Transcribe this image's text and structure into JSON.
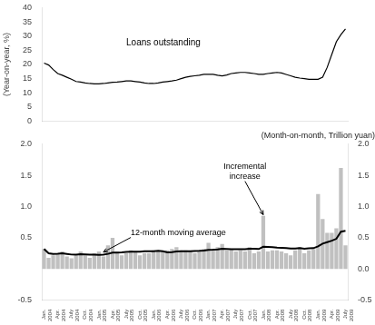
{
  "chart_data": [
    {
      "type": "line",
      "ylabel": "(Year-on-year, %)",
      "categories": [
        "Jan.\n2004",
        null,
        null,
        "Apr.\n2004",
        null,
        null,
        "July\n2004",
        null,
        null,
        "Oct.\n2004",
        null,
        null,
        "Jan.\n2005",
        null,
        null,
        "Apr.\n2005",
        null,
        null,
        "July\n2005",
        null,
        null,
        "Oct.\n2005",
        null,
        null,
        "Jan.\n2006",
        null,
        null,
        "Apr.\n2006",
        null,
        null,
        "July\n2006",
        null,
        null,
        "Oct.\n2006",
        null,
        null,
        "Jan.\n2007",
        null,
        null,
        "Apr.\n2007",
        null,
        null,
        "July\n2007",
        null,
        null,
        "Oct.\n2007",
        null,
        null,
        "Jan.\n2008",
        null,
        null,
        "Apr.\n2008",
        null,
        null,
        "July\n2008",
        null,
        null,
        "Oct.\n2008",
        null,
        null,
        "Jan.\n2009",
        null,
        null,
        "Apr.\n2009",
        null,
        null,
        "July\n2009"
      ],
      "values": [
        20.5,
        19.8,
        18.2,
        16.8,
        16.2,
        15.5,
        14.8,
        14.0,
        13.8,
        13.5,
        13.3,
        13.2,
        13.2,
        13.3,
        13.5,
        13.7,
        13.8,
        14.0,
        14.2,
        14.2,
        14.0,
        13.8,
        13.5,
        13.3,
        13.3,
        13.5,
        13.8,
        14.0,
        14.2,
        14.5,
        15.0,
        15.5,
        15.8,
        16.0,
        16.2,
        16.5,
        16.5,
        16.5,
        16.2,
        16.0,
        16.3,
        16.8,
        17.0,
        17.2,
        17.2,
        17.0,
        16.8,
        16.5,
        16.5,
        16.8,
        17.0,
        17.2,
        17.0,
        16.5,
        16.0,
        15.5,
        15.2,
        15.0,
        14.8,
        14.8,
        14.8,
        15.5,
        19.0,
        23.5,
        28.0,
        30.5,
        32.5
      ],
      "color": "#000000",
      "ylim": [
        0,
        40
      ],
      "yticks": [
        0,
        5,
        10,
        15,
        20,
        25,
        30,
        35,
        40
      ],
      "grid": false,
      "tick_labels": "y",
      "annotations": [
        {
          "text": "Loans outstanding",
          "x": 18,
          "y": 26
        }
      ]
    },
    {
      "type": "bar",
      "ylabel": "(Month-on-month, Trillion yuan)",
      "categories": [
        "Jan.\n2004",
        null,
        null,
        "Apr.\n2004",
        null,
        null,
        "July\n2004",
        null,
        null,
        "Oct.\n2004",
        null,
        null,
        "Jan.\n2005",
        null,
        null,
        "Apr.\n2005",
        null,
        null,
        "July\n2005",
        null,
        null,
        "Oct.\n2005",
        null,
        null,
        "Jan.\n2006",
        null,
        null,
        "Apr.\n2006",
        null,
        null,
        "July\n2006",
        null,
        null,
        "Oct.\n2006",
        null,
        null,
        "Jan.\n2007",
        null,
        null,
        "Apr.\n2007",
        null,
        null,
        "July\n2007",
        null,
        null,
        "Oct.\n2007",
        null,
        null,
        "Jan.\n2008",
        null,
        null,
        "Apr.\n2008",
        null,
        null,
        "July\n2008",
        null,
        null,
        "Oct.\n2008",
        null,
        null,
        "Jan.\n2009",
        null,
        null,
        "Apr.\n2009",
        null,
        null,
        "July\n2009"
      ],
      "series": [
        {
          "type": "bar",
          "color": "#c0c0c0",
          "values": [
            0.32,
            0.18,
            0.22,
            0.25,
            0.28,
            0.2,
            0.17,
            0.22,
            0.28,
            0.22,
            0.18,
            0.25,
            0.28,
            0.2,
            0.38,
            0.5,
            0.28,
            0.22,
            0.25,
            0.3,
            0.28,
            0.22,
            0.25,
            0.25,
            0.3,
            0.28,
            0.28,
            0.3,
            0.32,
            0.35,
            0.3,
            0.3,
            0.28,
            0.25,
            0.28,
            0.32,
            0.42,
            0.3,
            0.35,
            0.4,
            0.3,
            0.32,
            0.28,
            0.3,
            0.28,
            0.35,
            0.25,
            0.28,
            0.85,
            0.28,
            0.3,
            0.3,
            0.28,
            0.25,
            0.22,
            0.3,
            0.35,
            0.25,
            0.3,
            0.32,
            1.2,
            0.8,
            0.58,
            0.58,
            0.65,
            1.62,
            0.38
          ]
        },
        {
          "type": "line",
          "color": "#000000",
          "values": [
            0.32,
            0.25,
            0.24,
            0.2425,
            0.25,
            0.2417,
            0.2314,
            0.23,
            0.2356,
            0.234,
            0.2291,
            0.2308,
            0.2275,
            0.2292,
            0.2425,
            0.2633,
            0.2633,
            0.265,
            0.2717,
            0.2783,
            0.2783,
            0.2783,
            0.2842,
            0.2842,
            0.2858,
            0.2925,
            0.2842,
            0.2675,
            0.2708,
            0.2817,
            0.2858,
            0.2858,
            0.2858,
            0.2883,
            0.2908,
            0.2967,
            0.3067,
            0.3083,
            0.3142,
            0.3225,
            0.3208,
            0.3183,
            0.3167,
            0.3167,
            0.3167,
            0.325,
            0.3225,
            0.3192,
            0.355,
            0.3533,
            0.3492,
            0.3408,
            0.3392,
            0.3333,
            0.3283,
            0.3283,
            0.3342,
            0.3258,
            0.33,
            0.3333,
            0.3625,
            0.4058,
            0.4292,
            0.4525,
            0.4833,
            0.5975,
            0.6108
          ]
        }
      ],
      "ylim": [
        -0.5,
        2.0
      ],
      "yticks": [
        -0.5,
        {
          "value": 0,
          "label": null
        },
        0.5,
        {
          "value": 1,
          "label": "1.0"
        },
        1.5,
        {
          "value": 2,
          "label": "2.0"
        }
      ],
      "y2lim": [
        -0.5,
        2.0
      ],
      "y2ticks": [
        -0.5,
        {
          "value": 0,
          "label": "0.0"
        },
        0.5,
        {
          "value": 1,
          "label": "1.0"
        },
        1.5,
        {
          "value": 2,
          "label": "2.0"
        }
      ],
      "grid": false,
      "annotations": [
        {
          "text": "Incremental\nincrease",
          "x": 44,
          "y": 1.42,
          "arrow_to": [
            48,
            0.87
          ]
        },
        {
          "text": "12-month moving average",
          "x": 19,
          "y": 0.52,
          "arrow_to": [
            13,
            0.27
          ]
        }
      ]
    }
  ]
}
